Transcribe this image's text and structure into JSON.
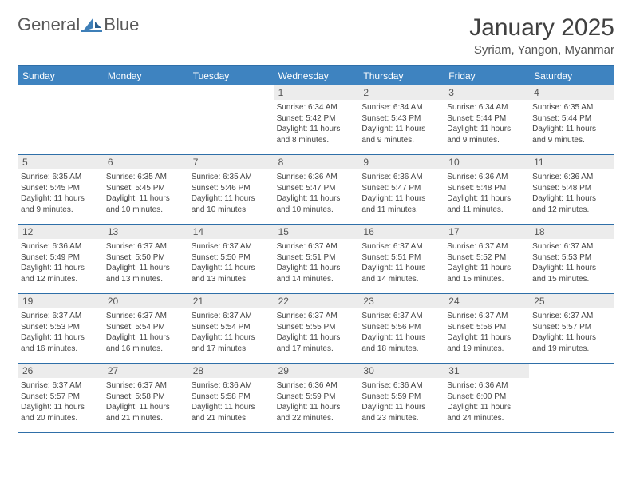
{
  "brand": {
    "word1": "General",
    "word2": "Blue"
  },
  "title": "January 2025",
  "subtitle": "Syriam, Yangon, Myanmar",
  "colors": {
    "header_bg": "#3e83c0",
    "header_text": "#ffffff",
    "rule": "#2f6fa8",
    "daynum_bg": "#ececec",
    "body_text": "#444444",
    "brand_gray": "#5a5a5a",
    "brand_blue": "#3e7fb8",
    "background": "#ffffff"
  },
  "typography": {
    "title_fontsize": 30,
    "subtitle_fontsize": 15,
    "header_fontsize": 12,
    "daynum_fontsize": 12,
    "detail_fontsize": 10
  },
  "day_headers": [
    "Sunday",
    "Monday",
    "Tuesday",
    "Wednesday",
    "Thursday",
    "Friday",
    "Saturday"
  ],
  "labels": {
    "sunrise": "Sunrise:",
    "sunset": "Sunset:",
    "daylight": "Daylight:"
  },
  "weeks": [
    [
      {
        "n": "",
        "empty": true
      },
      {
        "n": "",
        "empty": true
      },
      {
        "n": "",
        "empty": true
      },
      {
        "n": "1",
        "sunrise": "6:34 AM",
        "sunset": "5:42 PM",
        "daylight": "11 hours and 8 minutes."
      },
      {
        "n": "2",
        "sunrise": "6:34 AM",
        "sunset": "5:43 PM",
        "daylight": "11 hours and 9 minutes."
      },
      {
        "n": "3",
        "sunrise": "6:34 AM",
        "sunset": "5:44 PM",
        "daylight": "11 hours and 9 minutes."
      },
      {
        "n": "4",
        "sunrise": "6:35 AM",
        "sunset": "5:44 PM",
        "daylight": "11 hours and 9 minutes."
      }
    ],
    [
      {
        "n": "5",
        "sunrise": "6:35 AM",
        "sunset": "5:45 PM",
        "daylight": "11 hours and 9 minutes."
      },
      {
        "n": "6",
        "sunrise": "6:35 AM",
        "sunset": "5:45 PM",
        "daylight": "11 hours and 10 minutes."
      },
      {
        "n": "7",
        "sunrise": "6:35 AM",
        "sunset": "5:46 PM",
        "daylight": "11 hours and 10 minutes."
      },
      {
        "n": "8",
        "sunrise": "6:36 AM",
        "sunset": "5:47 PM",
        "daylight": "11 hours and 10 minutes."
      },
      {
        "n": "9",
        "sunrise": "6:36 AM",
        "sunset": "5:47 PM",
        "daylight": "11 hours and 11 minutes."
      },
      {
        "n": "10",
        "sunrise": "6:36 AM",
        "sunset": "5:48 PM",
        "daylight": "11 hours and 11 minutes."
      },
      {
        "n": "11",
        "sunrise": "6:36 AM",
        "sunset": "5:48 PM",
        "daylight": "11 hours and 12 minutes."
      }
    ],
    [
      {
        "n": "12",
        "sunrise": "6:36 AM",
        "sunset": "5:49 PM",
        "daylight": "11 hours and 12 minutes."
      },
      {
        "n": "13",
        "sunrise": "6:37 AM",
        "sunset": "5:50 PM",
        "daylight": "11 hours and 13 minutes."
      },
      {
        "n": "14",
        "sunrise": "6:37 AM",
        "sunset": "5:50 PM",
        "daylight": "11 hours and 13 minutes."
      },
      {
        "n": "15",
        "sunrise": "6:37 AM",
        "sunset": "5:51 PM",
        "daylight": "11 hours and 14 minutes."
      },
      {
        "n": "16",
        "sunrise": "6:37 AM",
        "sunset": "5:51 PM",
        "daylight": "11 hours and 14 minutes."
      },
      {
        "n": "17",
        "sunrise": "6:37 AM",
        "sunset": "5:52 PM",
        "daylight": "11 hours and 15 minutes."
      },
      {
        "n": "18",
        "sunrise": "6:37 AM",
        "sunset": "5:53 PM",
        "daylight": "11 hours and 15 minutes."
      }
    ],
    [
      {
        "n": "19",
        "sunrise": "6:37 AM",
        "sunset": "5:53 PM",
        "daylight": "11 hours and 16 minutes."
      },
      {
        "n": "20",
        "sunrise": "6:37 AM",
        "sunset": "5:54 PM",
        "daylight": "11 hours and 16 minutes."
      },
      {
        "n": "21",
        "sunrise": "6:37 AM",
        "sunset": "5:54 PM",
        "daylight": "11 hours and 17 minutes."
      },
      {
        "n": "22",
        "sunrise": "6:37 AM",
        "sunset": "5:55 PM",
        "daylight": "11 hours and 17 minutes."
      },
      {
        "n": "23",
        "sunrise": "6:37 AM",
        "sunset": "5:56 PM",
        "daylight": "11 hours and 18 minutes."
      },
      {
        "n": "24",
        "sunrise": "6:37 AM",
        "sunset": "5:56 PM",
        "daylight": "11 hours and 19 minutes."
      },
      {
        "n": "25",
        "sunrise": "6:37 AM",
        "sunset": "5:57 PM",
        "daylight": "11 hours and 19 minutes."
      }
    ],
    [
      {
        "n": "26",
        "sunrise": "6:37 AM",
        "sunset": "5:57 PM",
        "daylight": "11 hours and 20 minutes."
      },
      {
        "n": "27",
        "sunrise": "6:37 AM",
        "sunset": "5:58 PM",
        "daylight": "11 hours and 21 minutes."
      },
      {
        "n": "28",
        "sunrise": "6:36 AM",
        "sunset": "5:58 PM",
        "daylight": "11 hours and 21 minutes."
      },
      {
        "n": "29",
        "sunrise": "6:36 AM",
        "sunset": "5:59 PM",
        "daylight": "11 hours and 22 minutes."
      },
      {
        "n": "30",
        "sunrise": "6:36 AM",
        "sunset": "5:59 PM",
        "daylight": "11 hours and 23 minutes."
      },
      {
        "n": "31",
        "sunrise": "6:36 AM",
        "sunset": "6:00 PM",
        "daylight": "11 hours and 24 minutes."
      },
      {
        "n": "",
        "empty": true
      }
    ]
  ]
}
